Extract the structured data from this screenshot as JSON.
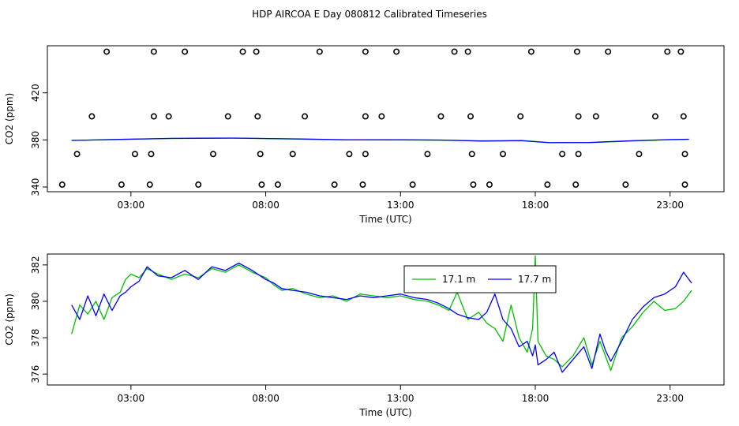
{
  "title": "HDP AIRCOA E  Day 080812  Calibrated Timeseries",
  "colors": {
    "green": "#00c000",
    "blue": "#0000ff",
    "black": "#000000",
    "background": "#ffffff"
  },
  "chart_data": [
    {
      "type": "line+scatter",
      "xlabel": "Time (UTC)",
      "ylabel": "CO2 (ppm)",
      "xlim": [
        -0.1,
        25.0
      ],
      "ylim": [
        336,
        460
      ],
      "x_ticks": [
        3,
        8,
        13,
        18,
        23
      ],
      "x_tick_labels": [
        "03:00",
        "08:00",
        "13:00",
        "18:00",
        "23:00"
      ],
      "y_ticks": [
        340,
        380,
        420
      ],
      "y_tick_labels": [
        "340",
        "380",
        "420"
      ],
      "grid": false,
      "series": [
        {
          "color": "#00c000",
          "x": [
            0.8,
            2.5,
            4.5,
            6.8,
            9.0,
            11.0,
            13.0,
            14.5,
            16.0,
            17.5,
            18.5,
            20.0,
            21.5,
            23.0,
            23.7
          ],
          "y": [
            379.5,
            380.5,
            381.2,
            381.5,
            380.8,
            380.0,
            380.0,
            379.8,
            379.2,
            379.6,
            377.8,
            377.6,
            379.0,
            380.2,
            380.5
          ]
        },
        {
          "color": "#0000ff",
          "x": [
            0.8,
            2.5,
            4.5,
            6.8,
            9.0,
            11.0,
            13.0,
            14.5,
            16.0,
            17.5,
            18.5,
            20.0,
            21.5,
            23.0,
            23.7
          ],
          "y": [
            379.6,
            380.4,
            381.3,
            381.6,
            380.9,
            380.2,
            380.1,
            379.9,
            379.0,
            379.3,
            377.6,
            377.8,
            379.2,
            380.3,
            380.6
          ]
        }
      ],
      "points": [
        {
          "x": 2.1,
          "y": 455
        },
        {
          "x": 3.85,
          "y": 455
        },
        {
          "x": 5.0,
          "y": 455
        },
        {
          "x": 7.15,
          "y": 455
        },
        {
          "x": 7.65,
          "y": 455
        },
        {
          "x": 10.0,
          "y": 455
        },
        {
          "x": 11.7,
          "y": 455
        },
        {
          "x": 12.85,
          "y": 455
        },
        {
          "x": 15.0,
          "y": 455
        },
        {
          "x": 15.5,
          "y": 455
        },
        {
          "x": 17.85,
          "y": 455
        },
        {
          "x": 19.55,
          "y": 455
        },
        {
          "x": 20.7,
          "y": 455
        },
        {
          "x": 22.9,
          "y": 455
        },
        {
          "x": 23.4,
          "y": 455
        },
        {
          "x": 1.55,
          "y": 400
        },
        {
          "x": 3.85,
          "y": 400
        },
        {
          "x": 4.4,
          "y": 400
        },
        {
          "x": 6.6,
          "y": 400
        },
        {
          "x": 7.7,
          "y": 400
        },
        {
          "x": 9.45,
          "y": 400
        },
        {
          "x": 11.7,
          "y": 400
        },
        {
          "x": 12.3,
          "y": 400
        },
        {
          "x": 14.5,
          "y": 400
        },
        {
          "x": 15.6,
          "y": 400
        },
        {
          "x": 17.45,
          "y": 400
        },
        {
          "x": 19.6,
          "y": 400
        },
        {
          "x": 20.25,
          "y": 400
        },
        {
          "x": 22.45,
          "y": 400
        },
        {
          "x": 23.5,
          "y": 400
        },
        {
          "x": 1.0,
          "y": 368
        },
        {
          "x": 3.15,
          "y": 368
        },
        {
          "x": 3.75,
          "y": 368
        },
        {
          "x": 6.05,
          "y": 368
        },
        {
          "x": 7.8,
          "y": 368
        },
        {
          "x": 9.0,
          "y": 368
        },
        {
          "x": 11.1,
          "y": 368
        },
        {
          "x": 11.7,
          "y": 368
        },
        {
          "x": 14.0,
          "y": 368
        },
        {
          "x": 15.65,
          "y": 368
        },
        {
          "x": 16.8,
          "y": 368
        },
        {
          "x": 19.0,
          "y": 368
        },
        {
          "x": 19.6,
          "y": 368
        },
        {
          "x": 21.85,
          "y": 368
        },
        {
          "x": 23.55,
          "y": 368
        },
        {
          "x": 0.45,
          "y": 342
        },
        {
          "x": 2.65,
          "y": 342
        },
        {
          "x": 3.7,
          "y": 342
        },
        {
          "x": 5.5,
          "y": 342
        },
        {
          "x": 7.85,
          "y": 342
        },
        {
          "x": 8.45,
          "y": 342
        },
        {
          "x": 10.55,
          "y": 342
        },
        {
          "x": 11.6,
          "y": 342
        },
        {
          "x": 13.45,
          "y": 342
        },
        {
          "x": 15.7,
          "y": 342
        },
        {
          "x": 16.3,
          "y": 342
        },
        {
          "x": 18.45,
          "y": 342
        },
        {
          "x": 19.5,
          "y": 342
        },
        {
          "x": 21.35,
          "y": 342
        },
        {
          "x": 23.55,
          "y": 342
        }
      ]
    },
    {
      "type": "line",
      "xlabel": "Time (UTC)",
      "ylabel": "CO2 (ppm)",
      "xlim": [
        -0.1,
        25.0
      ],
      "ylim": [
        375.4,
        382.6
      ],
      "x_ticks": [
        3,
        8,
        13,
        18,
        23
      ],
      "x_tick_labels": [
        "03:00",
        "08:00",
        "13:00",
        "18:00",
        "23:00"
      ],
      "y_ticks": [
        376,
        378,
        380,
        382
      ],
      "y_tick_labels": [
        "376",
        "378",
        "380",
        "382"
      ],
      "grid": false,
      "legend_placement": "top-right",
      "series": [
        {
          "name": "17.1 m",
          "color": "#00c000",
          "x": [
            0.8,
            1.1,
            1.4,
            1.7,
            2.0,
            2.3,
            2.6,
            2.8,
            3.0,
            3.3,
            3.6,
            4.0,
            4.5,
            5.0,
            5.5,
            6.0,
            6.5,
            7.0,
            7.5,
            8.0,
            8.3,
            8.6,
            9.0,
            9.5,
            10.0,
            10.5,
            11.0,
            11.5,
            12.0,
            12.5,
            13.0,
            13.5,
            14.0,
            14.4,
            14.8,
            15.1,
            15.5,
            15.9,
            16.2,
            16.5,
            16.8,
            17.1,
            17.4,
            17.7,
            17.9,
            18.0,
            18.1,
            18.4,
            18.7,
            19.0,
            19.4,
            19.8,
            20.1,
            20.4,
            20.6,
            20.8,
            21.2,
            21.6,
            22.0,
            22.4,
            22.8,
            23.2,
            23.5,
            23.8
          ],
          "y": [
            378.2,
            379.8,
            379.3,
            380.0,
            379.0,
            380.2,
            380.5,
            381.2,
            381.5,
            381.3,
            381.8,
            381.5,
            381.2,
            381.5,
            381.3,
            381.8,
            381.6,
            382.0,
            381.6,
            381.3,
            380.9,
            380.6,
            380.7,
            380.4,
            380.2,
            380.3,
            380.0,
            380.4,
            380.3,
            380.2,
            380.3,
            380.1,
            380.0,
            379.8,
            379.5,
            380.5,
            379.0,
            379.4,
            378.8,
            378.5,
            377.8,
            379.8,
            378.0,
            377.2,
            378.5,
            382.5,
            377.8,
            377.0,
            376.8,
            376.4,
            377.0,
            378.0,
            376.5,
            377.8,
            377.0,
            376.2,
            378.0,
            378.6,
            379.4,
            380.0,
            379.5,
            379.6,
            380.0,
            380.6
          ]
        },
        {
          "name": "17.7 m",
          "color": "#0000ff",
          "x": [
            0.8,
            1.1,
            1.4,
            1.7,
            2.0,
            2.3,
            2.6,
            2.8,
            3.0,
            3.3,
            3.6,
            4.0,
            4.5,
            5.0,
            5.5,
            6.0,
            6.5,
            7.0,
            7.5,
            8.0,
            8.3,
            8.6,
            9.0,
            9.5,
            10.0,
            10.5,
            11.0,
            11.5,
            12.0,
            12.5,
            13.0,
            13.5,
            14.0,
            14.4,
            14.8,
            15.1,
            15.5,
            15.9,
            16.2,
            16.5,
            16.8,
            17.1,
            17.4,
            17.7,
            17.9,
            18.0,
            18.1,
            18.4,
            18.7,
            19.0,
            19.4,
            19.8,
            20.1,
            20.4,
            20.6,
            20.8,
            21.2,
            21.6,
            22.0,
            22.4,
            22.8,
            23.2,
            23.5,
            23.8
          ],
          "y": [
            379.8,
            379.0,
            380.3,
            379.2,
            380.4,
            379.5,
            380.3,
            380.5,
            380.8,
            381.1,
            381.9,
            381.4,
            381.3,
            381.7,
            381.2,
            381.9,
            381.7,
            382.1,
            381.7,
            381.2,
            381.0,
            380.7,
            380.6,
            380.5,
            380.3,
            380.2,
            380.1,
            380.3,
            380.2,
            380.3,
            380.4,
            380.2,
            380.1,
            379.9,
            379.6,
            379.3,
            379.1,
            379.0,
            379.4,
            380.4,
            379.0,
            378.5,
            377.5,
            377.8,
            377.0,
            377.6,
            376.5,
            376.8,
            377.2,
            376.1,
            376.8,
            377.5,
            376.3,
            378.2,
            377.3,
            376.7,
            377.8,
            379.0,
            379.7,
            380.2,
            380.4,
            380.8,
            381.6,
            381.0
          ]
        }
      ]
    }
  ]
}
